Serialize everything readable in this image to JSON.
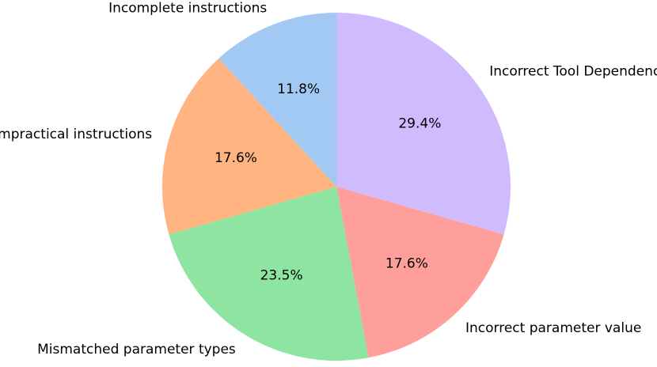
{
  "chart_data": {
    "type": "pie",
    "title": "",
    "slices": [
      {
        "label": "Incorrect Tool Dependency",
        "value": 29.4,
        "pct_text": "29.4%",
        "color": "#d0bbff"
      },
      {
        "label": "Incorrect parameter value",
        "value": 17.6,
        "pct_text": "17.6%",
        "color": "#ff9f9b"
      },
      {
        "label": "Mismatched parameter types",
        "value": 23.5,
        "pct_text": "23.5%",
        "color": "#8de5a1"
      },
      {
        "label": "Impractical instructions",
        "value": 17.6,
        "pct_text": "17.6%",
        "color": "#ffb482"
      },
      {
        "label": "Incomplete instructions",
        "value": 11.8,
        "pct_text": "11.8%",
        "color": "#a1c9f4"
      }
    ],
    "start_angle_deg": 90,
    "direction": "clockwise",
    "legend": "none"
  }
}
